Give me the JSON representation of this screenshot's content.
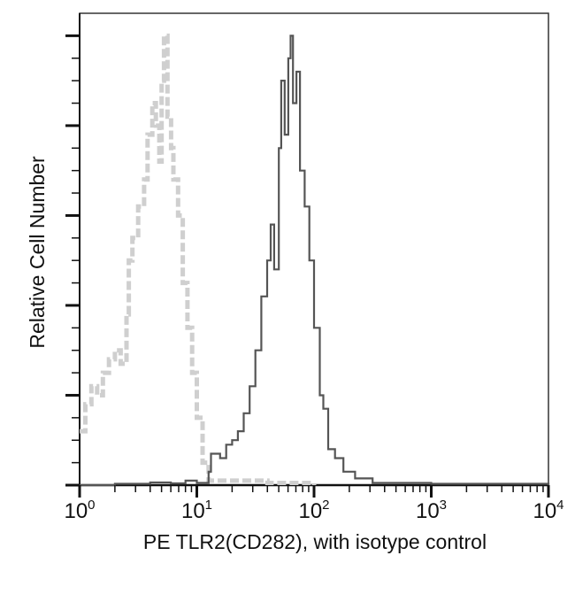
{
  "chart_data": {
    "type": "line",
    "title": "",
    "xlabel": "PE TLR2(CD282), with isotype control",
    "ylabel": "Relative Cell Number",
    "x_scale": "log",
    "xlim": [
      1,
      10000
    ],
    "ylim": [
      0,
      1.05
    ],
    "x_ticks": [
      {
        "base": "10",
        "exp": "0"
      },
      {
        "base": "10",
        "exp": "1"
      },
      {
        "base": "10",
        "exp": "2"
      },
      {
        "base": "10",
        "exp": "3"
      },
      {
        "base": "10",
        "exp": "4"
      }
    ],
    "y_tick_labels_shown": false,
    "grid": false,
    "series": [
      {
        "style": "dashed",
        "color": "#cfcfcf",
        "points": [
          [
            1.0,
            0.12
          ],
          [
            1.12,
            0.18
          ],
          [
            1.26,
            0.22
          ],
          [
            1.41,
            0.2
          ],
          [
            1.58,
            0.25
          ],
          [
            1.78,
            0.28
          ],
          [
            2.0,
            0.3
          ],
          [
            2.24,
            0.27
          ],
          [
            2.51,
            0.38
          ],
          [
            2.63,
            0.5
          ],
          [
            2.82,
            0.55
          ],
          [
            3.16,
            0.62
          ],
          [
            3.55,
            0.68
          ],
          [
            3.8,
            0.78
          ],
          [
            4.17,
            0.85
          ],
          [
            4.47,
            0.8
          ],
          [
            4.79,
            0.72
          ],
          [
            5.01,
            0.9
          ],
          [
            5.25,
            1.0
          ],
          [
            5.62,
            0.82
          ],
          [
            6.03,
            0.75
          ],
          [
            6.31,
            0.68
          ],
          [
            6.92,
            0.6
          ],
          [
            7.59,
            0.45
          ],
          [
            8.32,
            0.35
          ],
          [
            9.12,
            0.25
          ],
          [
            10.0,
            0.15
          ],
          [
            11.2,
            0.05
          ],
          [
            12.6,
            0.01
          ],
          [
            20,
            0.01
          ],
          [
            40,
            0.005
          ],
          [
            80,
            0.005
          ],
          [
            100,
            0
          ]
        ]
      },
      {
        "style": "solid",
        "color": "#555555",
        "points": [
          [
            1.0,
            0.0
          ],
          [
            2.0,
            0.003
          ],
          [
            4.0,
            0.006
          ],
          [
            6.0,
            0.004
          ],
          [
            8.0,
            0.01
          ],
          [
            10.0,
            0.005
          ],
          [
            12.6,
            0.03
          ],
          [
            13.2,
            0.07
          ],
          [
            15.8,
            0.06
          ],
          [
            17.8,
            0.09
          ],
          [
            20.0,
            0.1
          ],
          [
            22.4,
            0.12
          ],
          [
            25.1,
            0.16
          ],
          [
            28.2,
            0.22
          ],
          [
            31.6,
            0.3
          ],
          [
            35.5,
            0.42
          ],
          [
            39.8,
            0.5
          ],
          [
            42.7,
            0.58
          ],
          [
            45.7,
            0.48
          ],
          [
            50.1,
            0.75
          ],
          [
            52.5,
            0.9
          ],
          [
            56.2,
            0.78
          ],
          [
            60.3,
            0.95
          ],
          [
            63.1,
            1.0
          ],
          [
            66.1,
            0.85
          ],
          [
            70.8,
            0.92
          ],
          [
            75.9,
            0.7
          ],
          [
            83.2,
            0.62
          ],
          [
            91.2,
            0.5
          ],
          [
            100,
            0.35
          ],
          [
            112,
            0.2
          ],
          [
            120,
            0.17
          ],
          [
            132,
            0.08
          ],
          [
            151,
            0.06
          ],
          [
            178,
            0.03
          ],
          [
            224,
            0.015
          ],
          [
            316,
            0.005
          ],
          [
            1000,
            0.003
          ],
          [
            10000,
            0.0
          ]
        ]
      }
    ]
  }
}
